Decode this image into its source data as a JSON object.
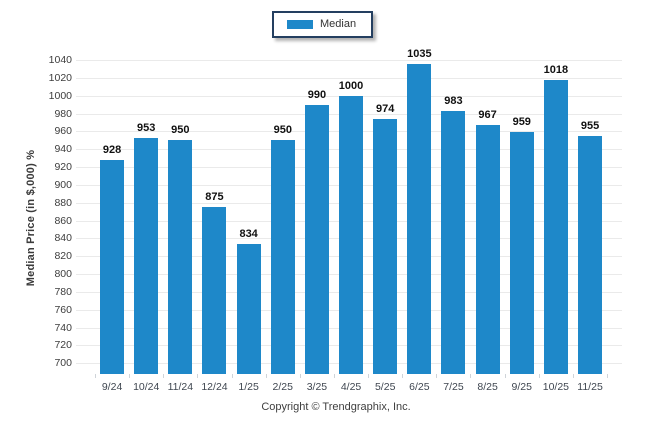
{
  "chart_data": {
    "type": "bar",
    "title": "",
    "categories": [
      "9/24",
      "10/24",
      "11/24",
      "12/24",
      "1/25",
      "2/25",
      "3/25",
      "4/25",
      "5/25",
      "6/25",
      "7/25",
      "8/25",
      "9/25",
      "10/25",
      "11/25"
    ],
    "values": [
      928,
      953,
      950,
      875,
      834,
      950,
      990,
      1000,
      974,
      1035,
      983,
      967,
      959,
      1018,
      955
    ],
    "series_name": "Median",
    "xlabel": "",
    "ylabel": "Median Price (in $,000) %",
    "ylim": [
      688,
      1040
    ],
    "yticks": {
      "min": 700,
      "max": 1040,
      "step": 20
    },
    "grid": true,
    "legend_position": "top-center",
    "bar_color": "#1E88C9"
  },
  "legend": {
    "label": "Median",
    "swatch_color": "#1E88C9"
  },
  "footer": {
    "copyright": "Copyright © Trendgraphix, Inc."
  },
  "colors": {
    "bar": "#1E88C9",
    "grid": "#EAEAEA",
    "grid_dark": "#CFD4D9",
    "legend_border": "#243F60",
    "tick_text": "#3D3D3D",
    "x_tick_text": "#3F4650",
    "value_text": "#111111",
    "axis_title": "#3B3B3B",
    "footer_text": "#3F3F3F"
  }
}
